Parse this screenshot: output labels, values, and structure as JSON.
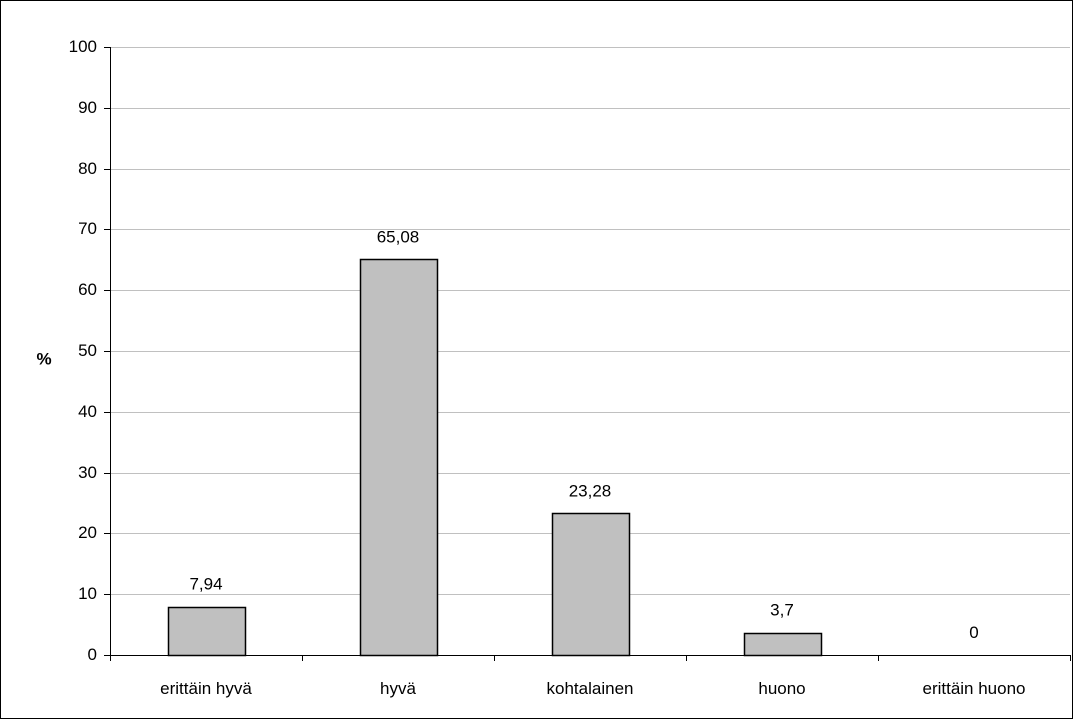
{
  "chart_data": {
    "type": "bar",
    "title": "",
    "xlabel": "",
    "ylabel": "%",
    "categories": [
      "erittäin hyvä",
      "hyvä",
      "kohtalainen",
      "huono",
      "erittäin huono"
    ],
    "values": [
      7.94,
      65.08,
      23.28,
      3.7,
      0
    ],
    "value_labels": [
      "7,94",
      "65,08",
      "23,28",
      "3,7",
      "0"
    ],
    "ylim": [
      0,
      100
    ],
    "yticks": [
      0,
      10,
      20,
      30,
      40,
      50,
      60,
      70,
      80,
      90,
      100
    ],
    "ytick_labels": [
      "0",
      "10",
      "20",
      "30",
      "40",
      "50",
      "60",
      "70",
      "80",
      "90",
      "100"
    ],
    "grid": true,
    "legend": "none",
    "colors": {
      "bar_fill": "#c0c0c0",
      "bar_stroke": "#000000",
      "grid": "#c0c0c0",
      "axis": "#000000",
      "frame": "#000000",
      "background": "#ffffff"
    }
  }
}
